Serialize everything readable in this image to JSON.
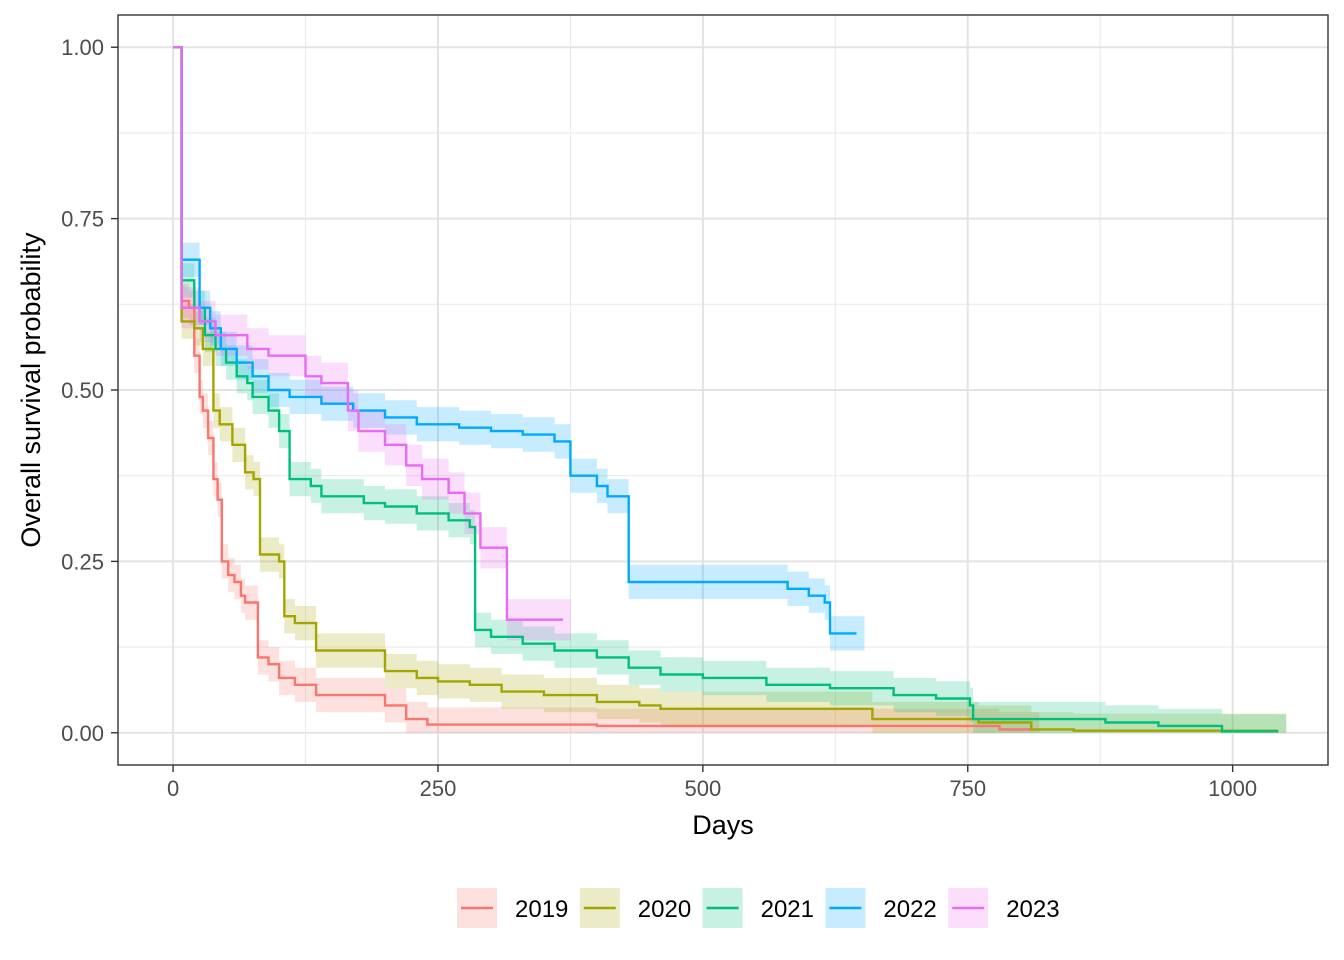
{
  "chart_data": {
    "type": "line",
    "subtype": "kaplan-meier step curves with confidence bands",
    "xlabel": "Days",
    "ylabel": "Overall survival probability",
    "xlim": [
      -52,
      1090
    ],
    "ylim": [
      -0.047,
      1.047
    ],
    "x_ticks": [
      0,
      250,
      500,
      750,
      1000
    ],
    "x_tick_labels": [
      "0",
      "250",
      "500",
      "750",
      "1000"
    ],
    "y_ticks": [
      0,
      0.25,
      0.5,
      0.75,
      1.0
    ],
    "y_tick_labels": [
      "0.00",
      "0.25",
      "0.50",
      "0.75",
      "1.00"
    ],
    "grid": true,
    "legend_position": "bottom",
    "series": [
      {
        "name": "2019",
        "color": "#F8766D",
        "band_halfwidth": 0.025,
        "points": [
          [
            0,
            1.0
          ],
          [
            8,
            1.0
          ],
          [
            8,
            0.63
          ],
          [
            15,
            0.62
          ],
          [
            20,
            0.55
          ],
          [
            25,
            0.49
          ],
          [
            28,
            0.47
          ],
          [
            33,
            0.43
          ],
          [
            38,
            0.37
          ],
          [
            42,
            0.34
          ],
          [
            46,
            0.25
          ],
          [
            52,
            0.23
          ],
          [
            58,
            0.22
          ],
          [
            64,
            0.2
          ],
          [
            68,
            0.19
          ],
          [
            80,
            0.11
          ],
          [
            90,
            0.1
          ],
          [
            100,
            0.08
          ],
          [
            115,
            0.07
          ],
          [
            135,
            0.055
          ],
          [
            170,
            0.055
          ],
          [
            200,
            0.04
          ],
          [
            220,
            0.02
          ],
          [
            240,
            0.012
          ],
          [
            300,
            0.012
          ],
          [
            350,
            0.012
          ],
          [
            400,
            0.01
          ],
          [
            700,
            0.01
          ],
          [
            780,
            0.005
          ],
          [
            810,
            0.005
          ]
        ]
      },
      {
        "name": "2020",
        "color": "#A3A500",
        "band_halfwidth": 0.025,
        "points": [
          [
            0,
            1.0
          ],
          [
            8,
            1.0
          ],
          [
            8,
            0.6
          ],
          [
            20,
            0.59
          ],
          [
            28,
            0.56
          ],
          [
            38,
            0.47
          ],
          [
            44,
            0.45
          ],
          [
            56,
            0.42
          ],
          [
            68,
            0.38
          ],
          [
            76,
            0.37
          ],
          [
            82,
            0.26
          ],
          [
            100,
            0.25
          ],
          [
            105,
            0.17
          ],
          [
            115,
            0.16
          ],
          [
            135,
            0.12
          ],
          [
            195,
            0.12
          ],
          [
            200,
            0.09
          ],
          [
            230,
            0.08
          ],
          [
            250,
            0.075
          ],
          [
            280,
            0.07
          ],
          [
            310,
            0.06
          ],
          [
            350,
            0.055
          ],
          [
            400,
            0.045
          ],
          [
            440,
            0.04
          ],
          [
            460,
            0.035
          ],
          [
            600,
            0.035
          ],
          [
            640,
            0.035
          ],
          [
            660,
            0.02
          ],
          [
            760,
            0.015
          ],
          [
            810,
            0.005
          ],
          [
            850,
            0.003
          ],
          [
            1000,
            0.003
          ],
          [
            1043,
            0.003
          ]
        ]
      },
      {
        "name": "2021",
        "color": "#00BF7D",
        "band_halfwidth": 0.025,
        "points": [
          [
            0,
            1.0
          ],
          [
            8,
            1.0
          ],
          [
            8,
            0.66
          ],
          [
            20,
            0.62
          ],
          [
            30,
            0.58
          ],
          [
            40,
            0.56
          ],
          [
            50,
            0.54
          ],
          [
            60,
            0.52
          ],
          [
            70,
            0.51
          ],
          [
            75,
            0.49
          ],
          [
            90,
            0.47
          ],
          [
            100,
            0.44
          ],
          [
            110,
            0.37
          ],
          [
            130,
            0.36
          ],
          [
            140,
            0.345
          ],
          [
            180,
            0.335
          ],
          [
            200,
            0.33
          ],
          [
            230,
            0.32
          ],
          [
            260,
            0.31
          ],
          [
            280,
            0.3
          ],
          [
            285,
            0.15
          ],
          [
            300,
            0.14
          ],
          [
            330,
            0.13
          ],
          [
            360,
            0.12
          ],
          [
            400,
            0.11
          ],
          [
            430,
            0.095
          ],
          [
            460,
            0.085
          ],
          [
            500,
            0.08
          ],
          [
            560,
            0.07
          ],
          [
            620,
            0.065
          ],
          [
            680,
            0.055
          ],
          [
            720,
            0.05
          ],
          [
            752,
            0.04
          ],
          [
            755,
            0.02
          ],
          [
            800,
            0.02
          ],
          [
            880,
            0.015
          ],
          [
            930,
            0.01
          ],
          [
            990,
            0.002
          ],
          [
            1043,
            0.002
          ]
        ]
      },
      {
        "name": "2022",
        "color": "#00A9FF",
        "band_halfwidth": 0.025,
        "points": [
          [
            0,
            1.0
          ],
          [
            8,
            1.0
          ],
          [
            8,
            0.69
          ],
          [
            15,
            0.69
          ],
          [
            25,
            0.62
          ],
          [
            35,
            0.59
          ],
          [
            45,
            0.56
          ],
          [
            60,
            0.54
          ],
          [
            75,
            0.52
          ],
          [
            90,
            0.5
          ],
          [
            110,
            0.49
          ],
          [
            140,
            0.48
          ],
          [
            170,
            0.47
          ],
          [
            200,
            0.46
          ],
          [
            230,
            0.45
          ],
          [
            270,
            0.445
          ],
          [
            300,
            0.44
          ],
          [
            330,
            0.435
          ],
          [
            360,
            0.425
          ],
          [
            375,
            0.375
          ],
          [
            400,
            0.36
          ],
          [
            410,
            0.345
          ],
          [
            430,
            0.22
          ],
          [
            500,
            0.22
          ],
          [
            550,
            0.22
          ],
          [
            580,
            0.21
          ],
          [
            600,
            0.2
          ],
          [
            615,
            0.19
          ],
          [
            620,
            0.145
          ],
          [
            645,
            0.145
          ]
        ]
      },
      {
        "name": "2023",
        "color": "#E76BF3",
        "band_halfwidth": 0.03,
        "points": [
          [
            0,
            1.0
          ],
          [
            8,
            1.0
          ],
          [
            8,
            0.62
          ],
          [
            25,
            0.6
          ],
          [
            40,
            0.58
          ],
          [
            70,
            0.56
          ],
          [
            90,
            0.55
          ],
          [
            125,
            0.52
          ],
          [
            140,
            0.51
          ],
          [
            165,
            0.47
          ],
          [
            175,
            0.44
          ],
          [
            200,
            0.42
          ],
          [
            220,
            0.39
          ],
          [
            235,
            0.37
          ],
          [
            260,
            0.35
          ],
          [
            275,
            0.32
          ],
          [
            290,
            0.27
          ],
          [
            315,
            0.165
          ],
          [
            340,
            0.165
          ],
          [
            368,
            0.165
          ]
        ]
      }
    ]
  }
}
